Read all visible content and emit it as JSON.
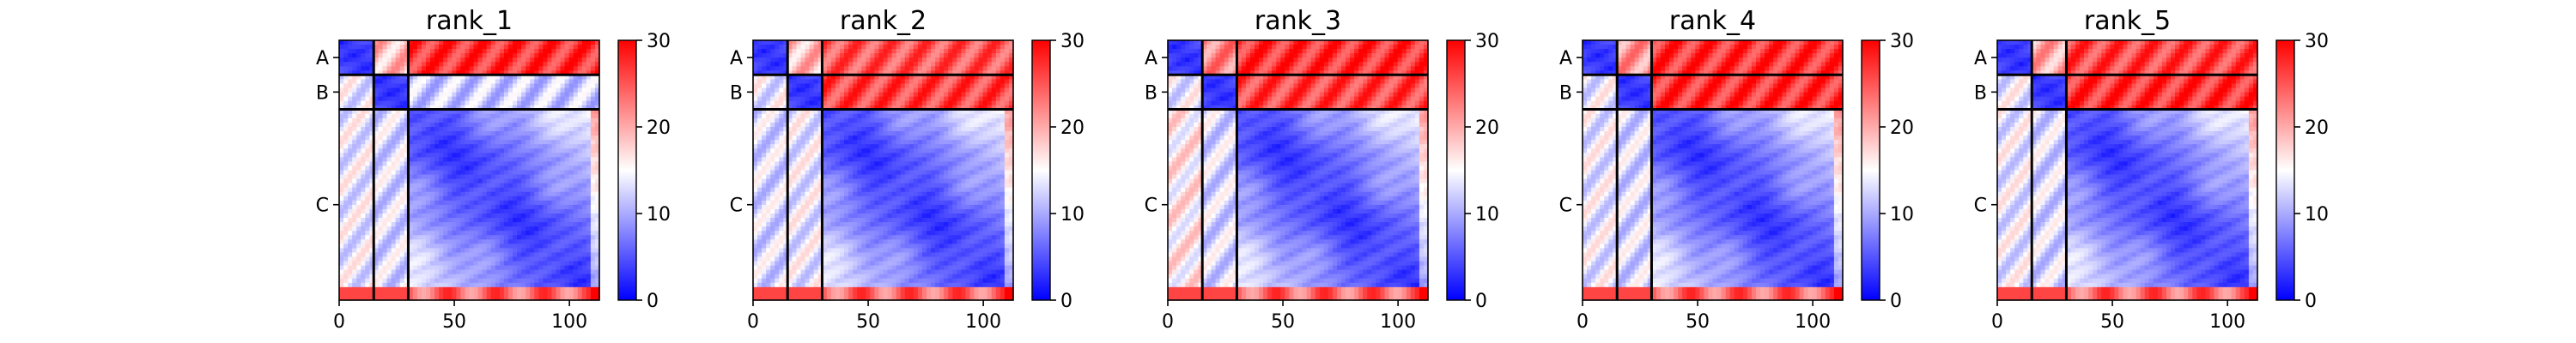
{
  "chart_data": [
    {
      "type": "heatmap",
      "title": "rank_1",
      "x_ticks": [
        0,
        50,
        100
      ],
      "x_range": [
        0,
        113
      ],
      "y_tick_labels": [
        "A",
        "B",
        "C"
      ],
      "chain_boundaries": [
        15,
        30
      ],
      "chain_ranges": {
        "A": [
          0,
          15
        ],
        "B": [
          15,
          30
        ],
        "C": [
          30,
          113
        ]
      },
      "colorbar": {
        "range": [
          0,
          30
        ],
        "ticks": [
          0,
          10,
          20,
          30
        ],
        "colors": [
          "#0000ff",
          "#ffffff",
          "#ff0000"
        ]
      },
      "inter_chain_level": {
        "A-B": 19,
        "A-C": 27,
        "B-C": 12,
        "C-A": 14,
        "C-B": 13
      }
    },
    {
      "type": "heatmap",
      "title": "rank_2",
      "x_ticks": [
        0,
        50,
        100
      ],
      "x_range": [
        0,
        113
      ],
      "y_tick_labels": [
        "A",
        "B",
        "C"
      ],
      "chain_boundaries": [
        15,
        30
      ],
      "chain_ranges": {
        "A": [
          0,
          15
        ],
        "B": [
          15,
          30
        ],
        "C": [
          30,
          113
        ]
      },
      "colorbar": {
        "range": [
          0,
          30
        ],
        "ticks": [
          0,
          10,
          20,
          30
        ],
        "colors": [
          "#0000ff",
          "#ffffff",
          "#ff0000"
        ]
      },
      "inter_chain_level": {
        "A-B": 19,
        "A-C": 25,
        "B-C": 26,
        "C-A": 13,
        "C-B": 14
      }
    },
    {
      "type": "heatmap",
      "title": "rank_3",
      "x_ticks": [
        0,
        50,
        100
      ],
      "x_range": [
        0,
        113
      ],
      "y_tick_labels": [
        "A",
        "B",
        "C"
      ],
      "chain_boundaries": [
        15,
        30
      ],
      "chain_ranges": {
        "A": [
          0,
          15
        ],
        "B": [
          15,
          30
        ],
        "C": [
          30,
          113
        ]
      },
      "colorbar": {
        "range": [
          0,
          30
        ],
        "ticks": [
          0,
          10,
          20,
          30
        ],
        "colors": [
          "#0000ff",
          "#ffffff",
          "#ff0000"
        ]
      },
      "inter_chain_level": {
        "A-B": 22,
        "A-C": 27,
        "B-C": 26,
        "C-A": 16,
        "C-B": 13
      }
    },
    {
      "type": "heatmap",
      "title": "rank_4",
      "x_ticks": [
        0,
        50,
        100
      ],
      "x_range": [
        0,
        113
      ],
      "y_tick_labels": [
        "A",
        "B",
        "C"
      ],
      "chain_boundaries": [
        15,
        30
      ],
      "chain_ranges": {
        "A": [
          0,
          15
        ],
        "B": [
          15,
          30
        ],
        "C": [
          30,
          113
        ]
      },
      "colorbar": {
        "range": [
          0,
          30
        ],
        "ticks": [
          0,
          10,
          20,
          30
        ],
        "colors": [
          "#0000ff",
          "#ffffff",
          "#ff0000"
        ]
      },
      "inter_chain_level": {
        "A-B": 21,
        "A-C": 27,
        "B-C": 27,
        "C-A": 14,
        "C-B": 13
      }
    },
    {
      "type": "heatmap",
      "title": "rank_5",
      "x_ticks": [
        0,
        50,
        100
      ],
      "x_range": [
        0,
        113
      ],
      "y_tick_labels": [
        "A",
        "B",
        "C"
      ],
      "chain_boundaries": [
        15,
        30
      ],
      "chain_ranges": {
        "A": [
          0,
          15
        ],
        "B": [
          15,
          30
        ],
        "C": [
          30,
          113
        ]
      },
      "colorbar": {
        "range": [
          0,
          30
        ],
        "ticks": [
          0,
          10,
          20,
          30
        ],
        "colors": [
          "#0000ff",
          "#ffffff",
          "#ff0000"
        ]
      },
      "inter_chain_level": {
        "A-B": 20,
        "A-C": 26,
        "B-C": 27,
        "C-A": 14,
        "C-B": 13
      }
    }
  ]
}
